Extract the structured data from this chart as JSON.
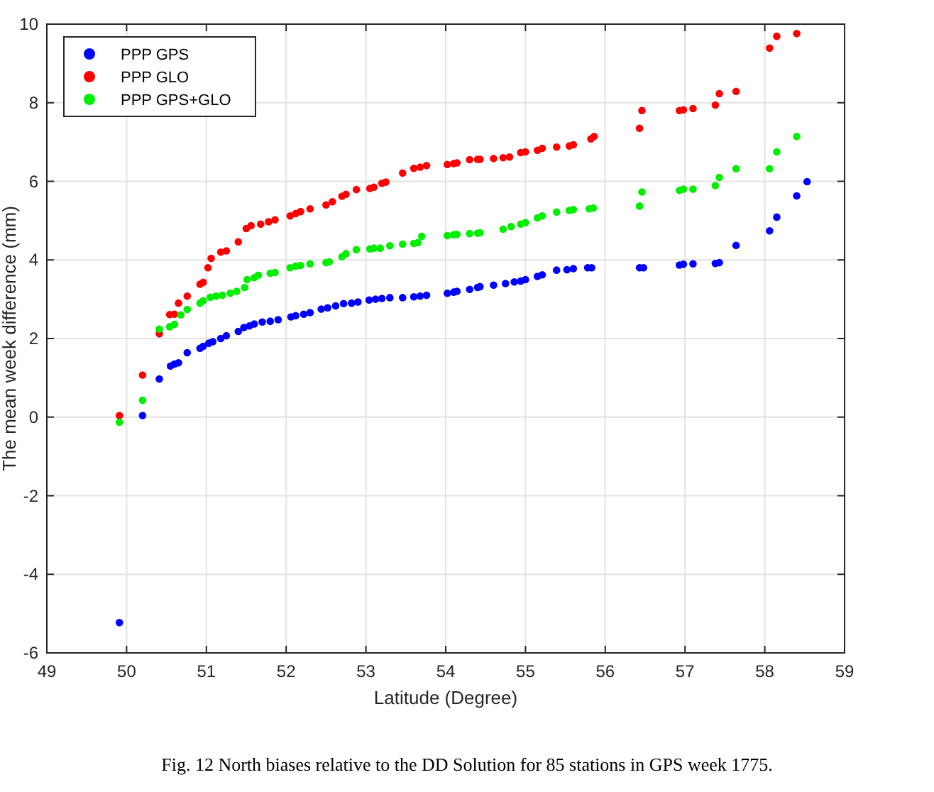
{
  "chart_data": {
    "type": "scatter",
    "xlabel": "Latitude (Degree)",
    "ylabel": "The mean week difference (mm)",
    "xlim": [
      49,
      59
    ],
    "ylim": [
      -6,
      10
    ],
    "xticks": [
      49,
      50,
      51,
      52,
      53,
      54,
      55,
      56,
      57,
      58,
      59
    ],
    "yticks": [
      -6,
      -4,
      -2,
      0,
      2,
      4,
      6,
      8,
      10
    ],
    "grid": true,
    "legend": "top left",
    "marker": "circle",
    "annotations": [
      "Fig. 12 North biases relative to the DD Solution for 85 stations in GPS week 1775."
    ],
    "series": [
      {
        "name": "PPP GPS",
        "color": "#0000ff",
        "x": [
          49.91,
          50.2,
          50.41,
          50.55,
          50.6,
          50.65,
          50.76,
          50.92,
          50.96,
          51.03,
          51.08,
          51.18,
          51.25,
          51.4,
          51.47,
          51.54,
          51.6,
          51.7,
          51.8,
          51.9,
          52.06,
          52.12,
          52.22,
          52.3,
          52.44,
          52.52,
          52.62,
          52.72,
          52.82,
          52.9,
          53.04,
          53.12,
          53.2,
          53.3,
          53.46,
          53.6,
          53.68,
          53.76,
          54.02,
          54.1,
          54.14,
          54.3,
          54.4,
          54.43,
          54.6,
          54.75,
          54.86,
          54.94,
          55.0,
          55.15,
          55.21,
          55.39,
          55.52,
          55.6,
          55.78,
          55.83,
          56.43,
          56.48,
          56.93,
          56.98,
          57.1,
          57.38,
          57.43,
          57.64,
          58.06,
          58.15,
          58.4,
          58.53
        ],
        "values": [
          -5.23,
          0.04,
          0.97,
          1.3,
          1.35,
          1.38,
          1.64,
          1.75,
          1.8,
          1.88,
          1.92,
          2.0,
          2.07,
          2.18,
          2.28,
          2.32,
          2.37,
          2.42,
          2.44,
          2.48,
          2.55,
          2.58,
          2.62,
          2.66,
          2.75,
          2.78,
          2.83,
          2.89,
          2.9,
          2.93,
          2.98,
          3.0,
          3.02,
          3.04,
          3.04,
          3.06,
          3.08,
          3.1,
          3.15,
          3.18,
          3.2,
          3.25,
          3.3,
          3.32,
          3.36,
          3.4,
          3.44,
          3.46,
          3.5,
          3.58,
          3.62,
          3.74,
          3.75,
          3.78,
          3.8,
          3.8,
          3.8,
          3.8,
          3.87,
          3.89,
          3.9,
          3.91,
          3.93,
          4.37,
          4.74,
          5.09,
          5.63,
          5.99
        ]
      },
      {
        "name": "PPP GLO",
        "color": "#ff0000",
        "x": [
          49.91,
          50.2,
          50.41,
          50.54,
          50.6,
          50.65,
          50.76,
          50.92,
          50.96,
          51.02,
          51.06,
          51.18,
          51.25,
          51.4,
          51.5,
          51.56,
          51.68,
          51.78,
          51.86,
          52.05,
          52.12,
          52.18,
          52.3,
          52.5,
          52.58,
          52.7,
          52.75,
          52.88,
          53.05,
          53.1,
          53.2,
          53.25,
          53.46,
          53.6,
          53.68,
          53.76,
          54.02,
          54.1,
          54.14,
          54.3,
          54.4,
          54.43,
          54.6,
          54.72,
          54.8,
          54.94,
          55.0,
          55.15,
          55.21,
          55.39,
          55.55,
          55.6,
          55.82,
          55.86,
          56.43,
          56.46,
          56.93,
          56.98,
          57.1,
          57.38,
          57.43,
          57.64,
          58.06,
          58.15,
          58.4
        ],
        "values": [
          0.04,
          1.07,
          2.12,
          2.61,
          2.62,
          2.9,
          3.08,
          3.38,
          3.43,
          3.8,
          4.04,
          4.2,
          4.23,
          4.46,
          4.8,
          4.87,
          4.91,
          4.97,
          5.02,
          5.12,
          5.18,
          5.23,
          5.3,
          5.4,
          5.48,
          5.62,
          5.67,
          5.79,
          5.82,
          5.85,
          5.95,
          5.98,
          6.21,
          6.33,
          6.36,
          6.4,
          6.43,
          6.45,
          6.47,
          6.55,
          6.56,
          6.56,
          6.58,
          6.6,
          6.62,
          6.73,
          6.75,
          6.79,
          6.84,
          6.87,
          6.9,
          6.93,
          7.08,
          7.14,
          7.35,
          7.8,
          7.8,
          7.82,
          7.85,
          7.94,
          8.23,
          8.29,
          9.39,
          9.69,
          9.76
        ]
      },
      {
        "name": "PPP GPS+GLO",
        "color": "#00ee00",
        "x": [
          49.91,
          50.2,
          50.41,
          50.54,
          50.6,
          50.68,
          50.76,
          50.92,
          50.96,
          51.05,
          51.12,
          51.2,
          51.3,
          51.38,
          51.48,
          51.51,
          51.6,
          51.65,
          51.8,
          51.86,
          52.05,
          52.12,
          52.18,
          52.3,
          52.5,
          52.54,
          52.7,
          52.75,
          52.88,
          53.05,
          53.1,
          53.18,
          53.3,
          53.46,
          53.6,
          53.65,
          53.7,
          54.02,
          54.1,
          54.14,
          54.3,
          54.4,
          54.43,
          54.72,
          54.82,
          54.94,
          55.0,
          55.15,
          55.21,
          55.39,
          55.55,
          55.6,
          55.8,
          55.85,
          56.43,
          56.46,
          56.93,
          56.98,
          57.1,
          57.38,
          57.43,
          57.64,
          58.06,
          58.15,
          58.4
        ],
        "values": [
          -0.13,
          0.43,
          2.24,
          2.3,
          2.36,
          2.6,
          2.74,
          2.9,
          2.96,
          3.05,
          3.08,
          3.1,
          3.15,
          3.2,
          3.3,
          3.5,
          3.55,
          3.61,
          3.66,
          3.68,
          3.8,
          3.84,
          3.86,
          3.9,
          3.93,
          3.95,
          4.08,
          4.16,
          4.26,
          4.28,
          4.3,
          4.3,
          4.36,
          4.4,
          4.42,
          4.44,
          4.6,
          4.62,
          4.64,
          4.65,
          4.67,
          4.68,
          4.69,
          4.78,
          4.85,
          4.91,
          4.95,
          5.07,
          5.12,
          5.22,
          5.26,
          5.28,
          5.3,
          5.32,
          5.37,
          5.73,
          5.77,
          5.8,
          5.8,
          5.89,
          6.1,
          6.32,
          6.32,
          6.75,
          7.14
        ]
      }
    ]
  }
}
